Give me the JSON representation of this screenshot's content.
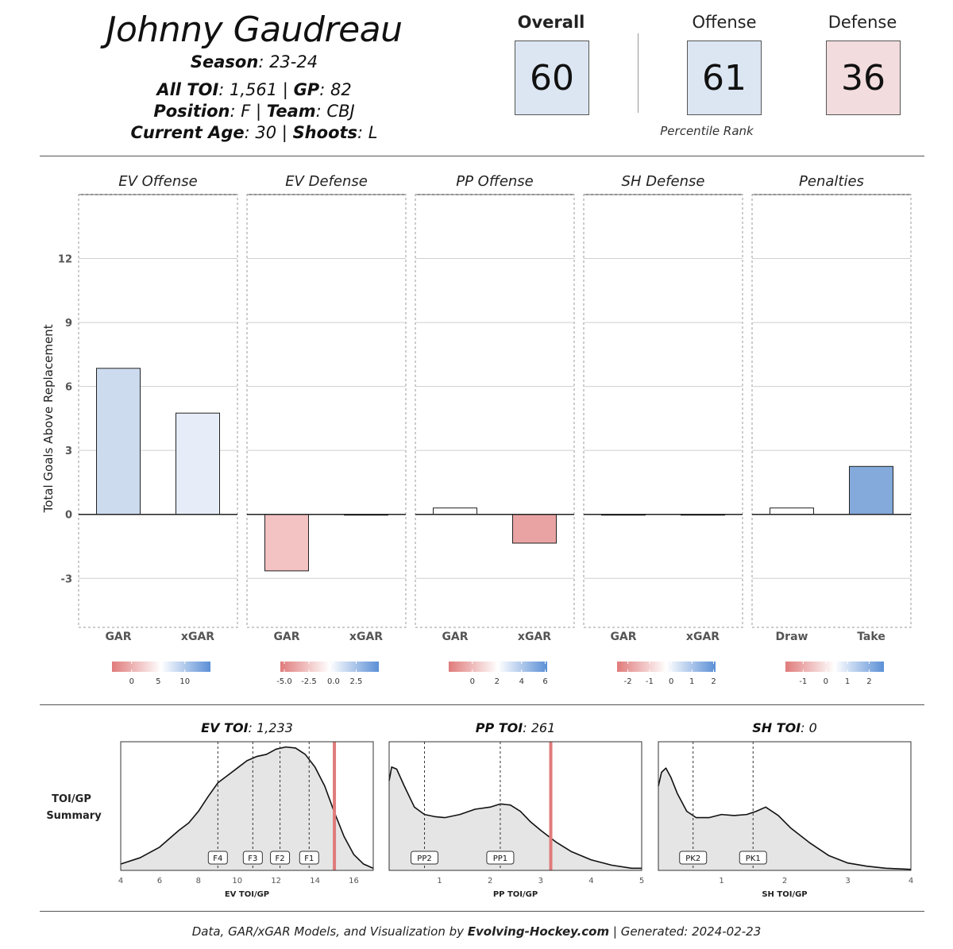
{
  "header": {
    "name": "Johnny Gaudreau",
    "season_label": "Season",
    "season": ": 23-24",
    "toi_label": "All TOI",
    "toi": ": 1,561 | ",
    "gp_label": "GP",
    "gp": ": 82",
    "position_label": "Position",
    "position": ": F | ",
    "team_label": "Team",
    "team": ": CBJ",
    "age_label": "Current Age",
    "age": ": 30 | ",
    "shoots_label": "Shoots",
    "shoots": ": L"
  },
  "scores": {
    "overall_label": "Overall",
    "overall": "60",
    "offense_label": "Offense",
    "offense": "61",
    "defense_label": "Defense",
    "defense": "36",
    "percentile_label": "Percentile Rank",
    "colors": {
      "overall": "#dce6f2",
      "offense": "#dce6f2",
      "defense": "#f2dcdd"
    }
  },
  "chart_data": [
    {
      "type": "bar",
      "ylabel": "Total Goals Above Replacement",
      "ylim": [
        -5.3,
        15
      ],
      "yticks": [
        -3,
        0,
        3,
        6,
        9,
        12
      ],
      "grid": true,
      "panels": [
        {
          "title": "EV Offense",
          "categories": [
            "GAR",
            "xGAR"
          ],
          "values": [
            6.85,
            4.75
          ],
          "colors": [
            "#cddbef",
            "#e6edf8"
          ],
          "legend_ticks": [
            "0",
            "5",
            "10"
          ],
          "legend_pos": [
            0.2,
            0.47,
            0.74
          ]
        },
        {
          "title": "EV Defense",
          "categories": [
            "GAR",
            "xGAR"
          ],
          "values": [
            -2.65,
            -0.03
          ],
          "colors": [
            "#f3c2c2",
            "#f7f7f7"
          ],
          "legend_ticks": [
            "-5.0",
            "-2.5",
            "0.0",
            "2.5"
          ],
          "legend_pos": [
            0.04,
            0.29,
            0.54,
            0.77
          ]
        },
        {
          "title": "PP Offense",
          "categories": [
            "GAR",
            "xGAR"
          ],
          "values": [
            0.3,
            -1.35
          ],
          "colors": [
            "#ffffff",
            "#eaa3a3"
          ],
          "legend_ticks": [
            "0",
            "2",
            "4",
            "6"
          ],
          "legend_pos": [
            0.24,
            0.49,
            0.74,
            0.98
          ]
        },
        {
          "title": "SH Defense",
          "categories": [
            "GAR",
            "xGAR"
          ],
          "values": [
            0.0,
            0.0
          ],
          "colors": [
            "#ffffff",
            "#ffffff"
          ],
          "legend_ticks": [
            "-2",
            "-1",
            "0",
            "1",
            "2"
          ],
          "legend_pos": [
            0.11,
            0.33,
            0.55,
            0.76,
            0.98
          ]
        },
        {
          "title": "Penalties",
          "categories": [
            "Draw",
            "Take"
          ],
          "values": [
            0.3,
            2.25
          ],
          "colors": [
            "#ffffff",
            "#84a9db"
          ],
          "legend_ticks": [
            "-1",
            "0",
            "1",
            "2"
          ],
          "legend_pos": [
            0.18,
            0.41,
            0.63,
            0.85
          ]
        }
      ]
    },
    {
      "type": "area",
      "row_label": [
        "TOI/GP",
        "Summary"
      ],
      "panels": [
        {
          "title_label": "EV TOI",
          "title_value": ": 1,233",
          "xlabel": "EV TOI/GP",
          "xlim": [
            4,
            17
          ],
          "xticks": [
            4,
            6,
            8,
            10,
            12,
            14,
            16
          ],
          "marker": 15.0,
          "reference_lines": [
            {
              "label": "F4",
              "x": 9.0
            },
            {
              "label": "F3",
              "x": 10.8
            },
            {
              "label": "F2",
              "x": 12.2
            },
            {
              "label": "F1",
              "x": 13.7
            }
          ],
          "density_x": [
            4,
            5,
            6,
            7,
            7.5,
            8,
            8.5,
            9,
            9.5,
            10,
            10.5,
            11,
            11.5,
            12,
            12.5,
            13,
            13.5,
            14,
            14.5,
            15,
            15.5,
            16,
            16.5,
            17
          ],
          "density_y": [
            0.06,
            0.12,
            0.22,
            0.38,
            0.45,
            0.56,
            0.7,
            0.83,
            0.9,
            0.97,
            1.04,
            1.08,
            1.1,
            1.15,
            1.17,
            1.16,
            1.1,
            0.98,
            0.8,
            0.55,
            0.32,
            0.15,
            0.06,
            0.02
          ]
        },
        {
          "title_label": "PP TOI",
          "title_value": ": 261",
          "xlabel": "PP TOI/GP",
          "xlim": [
            0,
            5
          ],
          "xticks": [
            1,
            2,
            3,
            4,
            5
          ],
          "marker": 3.2,
          "reference_lines": [
            {
              "label": "PP2",
              "x": 0.7
            },
            {
              "label": "PP1",
              "x": 2.2
            }
          ],
          "density_x": [
            0.0,
            0.05,
            0.15,
            0.3,
            0.5,
            0.7,
            0.9,
            1.1,
            1.4,
            1.7,
            2.0,
            2.2,
            2.4,
            2.6,
            2.8,
            3.0,
            3.3,
            3.6,
            4.0,
            4.4,
            4.8,
            5.0
          ],
          "density_y": [
            0.85,
            0.98,
            0.96,
            0.8,
            0.6,
            0.53,
            0.51,
            0.5,
            0.53,
            0.58,
            0.6,
            0.63,
            0.62,
            0.56,
            0.46,
            0.38,
            0.27,
            0.18,
            0.1,
            0.05,
            0.02,
            0.02
          ]
        },
        {
          "title_label": "SH TOI",
          "title_value": ": 0",
          "xlabel": "SH TOI/GP",
          "xlim": [
            0,
            4
          ],
          "xticks": [
            1,
            2,
            3,
            4
          ],
          "marker": null,
          "reference_lines": [
            {
              "label": "PK2",
              "x": 0.55
            },
            {
              "label": "PK1",
              "x": 1.5
            }
          ],
          "density_x": [
            0.0,
            0.05,
            0.12,
            0.2,
            0.3,
            0.45,
            0.6,
            0.8,
            1.0,
            1.2,
            1.4,
            1.55,
            1.7,
            1.9,
            2.1,
            2.4,
            2.7,
            3.0,
            3.3,
            3.6,
            4.0
          ],
          "density_y": [
            0.8,
            0.93,
            0.97,
            0.88,
            0.73,
            0.56,
            0.5,
            0.5,
            0.53,
            0.52,
            0.53,
            0.56,
            0.6,
            0.52,
            0.4,
            0.26,
            0.14,
            0.07,
            0.04,
            0.02,
            0.01
          ]
        }
      ]
    }
  ],
  "footer": {
    "prefix": "Data, GAR/xGAR Models, and Visualization by ",
    "site": "Evolving-Hockey.com",
    "suffix": " | Generated: 2024-02-23"
  }
}
